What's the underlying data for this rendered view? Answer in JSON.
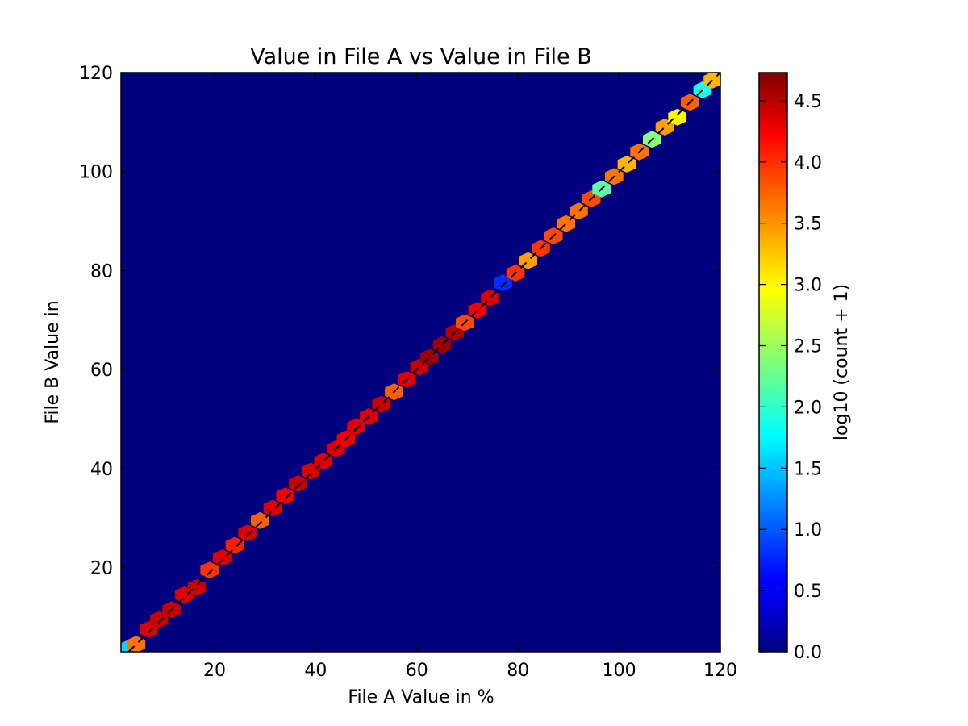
{
  "chart_data": {
    "type": "heatmap",
    "title": "Value in File A vs Value in File B",
    "xlabel": "File A Value in %",
    "ylabel": "File B Value in",
    "xlim": [
      1.5,
      120
    ],
    "ylim": [
      3,
      120
    ],
    "xticks": [
      20,
      40,
      60,
      80,
      100,
      120
    ],
    "yticks": [
      20,
      40,
      60,
      80,
      100,
      120
    ],
    "grid": false,
    "background_color": "#00007f",
    "diagonal_line": {
      "style": "dashed",
      "color": "#000000"
    },
    "colorbar": {
      "label": "log10 (count + 1)",
      "range": [
        0,
        4.73
      ],
      "ticks": [
        0.0,
        0.5,
        1.0,
        1.5,
        2.0,
        2.5,
        3.0,
        3.5,
        4.0,
        4.5
      ],
      "tick_labels": [
        "0.0",
        "0.5",
        "1.0",
        "1.5",
        "2.0",
        "2.5",
        "3.0",
        "3.5",
        "4.0",
        "4.5"
      ],
      "colormap": "jet"
    },
    "cells": [
      [
        2.5,
        3.5,
        1.6
      ],
      [
        4.5,
        4.5,
        3.6
      ],
      [
        7,
        7.5,
        4.3
      ],
      [
        9,
        9.5,
        4.4
      ],
      [
        11.5,
        11.5,
        4.4
      ],
      [
        14,
        14.5,
        4.3
      ],
      [
        16.5,
        16,
        4.4
      ],
      [
        19,
        19.5,
        3.9
      ],
      [
        21.5,
        22,
        4.3
      ],
      [
        24,
        24.5,
        4.0
      ],
      [
        26.5,
        27,
        4.3
      ],
      [
        29,
        29.5,
        3.7
      ],
      [
        31.5,
        32,
        4.3
      ],
      [
        34,
        34.5,
        4.2
      ],
      [
        36.5,
        37,
        4.4
      ],
      [
        39,
        39.5,
        4.3
      ],
      [
        41.5,
        41.5,
        4.3
      ],
      [
        44,
        44,
        4.3
      ],
      [
        46,
        46,
        4.2
      ],
      [
        48,
        48.5,
        4.3
      ],
      [
        50.5,
        50.5,
        4.3
      ],
      [
        53,
        53,
        4.4
      ],
      [
        55.5,
        55.5,
        3.7
      ],
      [
        58,
        58,
        4.3
      ],
      [
        60.5,
        60.5,
        4.4
      ],
      [
        62.5,
        62.5,
        4.6
      ],
      [
        65,
        65,
        4.6
      ],
      [
        67.5,
        67.5,
        4.5
      ],
      [
        69.5,
        69.5,
        3.8
      ],
      [
        72,
        72,
        4.2
      ],
      [
        74.5,
        74.5,
        4.3
      ],
      [
        77,
        77.5,
        0.8
      ],
      [
        79.5,
        79.5,
        3.9
      ],
      [
        82,
        82,
        3.4
      ],
      [
        84.5,
        84.5,
        3.9
      ],
      [
        87,
        87,
        3.8
      ],
      [
        89.5,
        89.5,
        3.6
      ],
      [
        92,
        92,
        3.6
      ],
      [
        94.5,
        94.5,
        3.8
      ],
      [
        96.5,
        96.5,
        2.2
      ],
      [
        99,
        99,
        3.6
      ],
      [
        101.5,
        101.5,
        3.3
      ],
      [
        104,
        104,
        3.6
      ],
      [
        106.5,
        106.5,
        2.4
      ],
      [
        109,
        109,
        3.4
      ],
      [
        111.5,
        111,
        3.0
      ],
      [
        114,
        114,
        3.7
      ],
      [
        116.5,
        116.5,
        1.9
      ],
      [
        118.5,
        118.5,
        3.3
      ]
    ]
  }
}
